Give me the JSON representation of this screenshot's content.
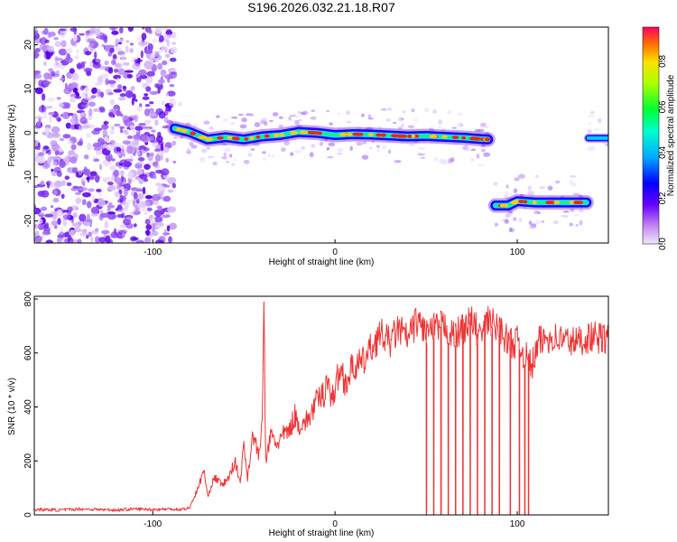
{
  "figure": {
    "title": "S196.2026.032.21.18.R07"
  },
  "colors": {
    "snr_line": "#ee3333",
    "axis": "#000000",
    "background": "#ffffff"
  },
  "chart_data": [
    {
      "type": "heatmap",
      "title": "S196.2026.032.21.18.R07",
      "xlabel": "Height of straight line (km)",
      "ylabel": "Frequency (Hz)",
      "xlim": [
        -165,
        150
      ],
      "ylim": [
        -25,
        24
      ],
      "xticks": [
        -100,
        0,
        100
      ],
      "yticks": [
        -20,
        -10,
        0,
        10,
        20
      ],
      "grid": false,
      "colorscale": "rainbow (purple-blue-cyan-green-yellow-red)",
      "colorbar": {
        "label": "Normalized spectral amplitude",
        "range": [
          0.0,
          0.95
        ],
        "ticks": [
          0.0,
          0.2,
          0.4,
          0.6,
          0.8
        ]
      },
      "features": [
        {
          "description": "broadband noise",
          "x_range": [
            -165,
            -88
          ],
          "y_range": [
            -25,
            24
          ],
          "amplitude": 0.1
        },
        {
          "description": "tone",
          "x": [
            -88,
            -80,
            -70,
            -60,
            -50,
            -40,
            -30,
            -20,
            -10,
            0,
            10,
            20,
            30,
            40,
            50,
            60,
            70,
            80,
            84
          ],
          "y": [
            1.0,
            0.2,
            -1.5,
            -1.0,
            -1.5,
            -0.8,
            -0.5,
            0.2,
            0.0,
            -0.5,
            -0.3,
            -0.4,
            -0.6,
            -0.8,
            -0.7,
            -0.9,
            -1.1,
            -1.4,
            -1.5
          ],
          "amplitude": 0.85
        },
        {
          "description": "tone",
          "x": [
            88,
            95,
            100,
            110,
            120,
            130,
            138
          ],
          "y": [
            -16.5,
            -16.5,
            -15.5,
            -15.8,
            -15.8,
            -15.8,
            -15.8
          ],
          "amplitude": 0.8
        },
        {
          "description": "tone",
          "x": [
            139,
            150
          ],
          "y": [
            -1.2,
            -1.2
          ],
          "amplitude": 0.35
        }
      ]
    },
    {
      "type": "line",
      "xlabel": "Height of straight line (km)",
      "ylabel": "SNR (10 * v/v)",
      "xlim": [
        -165,
        150
      ],
      "ylim": [
        0,
        810
      ],
      "xticks": [
        -100,
        0,
        100
      ],
      "yticks": [
        0,
        200,
        400,
        600,
        800
      ],
      "grid": false,
      "series": [
        {
          "x": [
            -165,
            -150,
            -140,
            -130,
            -120,
            -110,
            -100,
            -90,
            -85,
            -80,
            -78,
            -75,
            -72,
            -70,
            -66,
            -62,
            -58,
            -55,
            -52,
            -50,
            -48,
            -45,
            -42,
            -40,
            -39,
            -38,
            -35,
            -32,
            -28,
            -25,
            -22,
            -20,
            -15,
            -10,
            -6,
            -4,
            -2,
            0,
            3,
            6,
            10,
            15,
            20,
            25,
            30,
            35,
            40,
            45,
            50,
            52,
            55,
            60,
            65,
            70,
            75,
            80,
            85,
            88,
            90,
            95,
            100,
            105,
            108,
            112,
            118,
            125,
            132,
            140,
            150
          ],
          "y": [
            20,
            18,
            22,
            20,
            18,
            22,
            20,
            22,
            20,
            25,
            55,
            100,
            170,
            70,
            140,
            110,
            140,
            200,
            120,
            260,
            140,
            300,
            220,
            320,
            790,
            200,
            300,
            260,
            300,
            310,
            370,
            330,
            350,
            420,
            450,
            520,
            420,
            470,
            540,
            490,
            550,
            560,
            620,
            670,
            640,
            690,
            650,
            720,
            680,
            680,
            690,
            700,
            660,
            690,
            720,
            660,
            730,
            690,
            700,
            640,
            640,
            580,
            550,
            640,
            660,
            650,
            640,
            660,
            650
          ]
        }
      ],
      "dropouts_x": [
        50,
        54,
        58,
        62,
        66,
        70,
        74,
        78,
        82,
        86,
        90,
        96,
        101,
        104,
        106
      ],
      "dropout_value": 0
    }
  ]
}
